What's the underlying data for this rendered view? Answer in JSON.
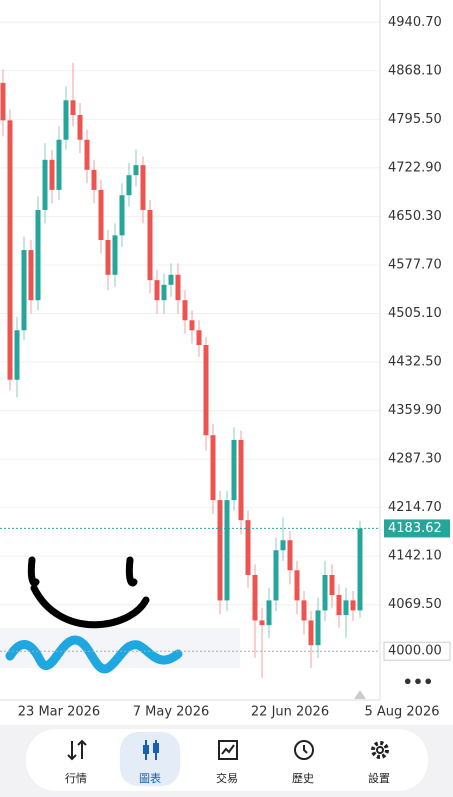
{
  "chart_data": {
    "type": "candlestick",
    "categories": [
      null,
      null,
      null,
      null,
      null,
      null,
      null,
      null,
      "23 Mar 2026",
      null,
      null,
      null,
      null,
      null,
      null,
      null,
      null,
      null,
      null,
      null,
      null,
      null,
      null,
      null,
      "7 May 2026",
      null,
      null,
      null,
      null,
      null,
      null,
      null,
      null,
      null,
      null,
      null,
      null,
      null,
      null,
      null,
      null,
      "22 Jun 2026",
      null,
      null,
      null,
      null,
      null,
      null,
      null,
      null,
      null,
      null,
      null,
      null,
      null,
      null,
      null,
      "5 Aug 2026"
    ],
    "open": [
      4850,
      4794,
      4406,
      4480,
      4600,
      4525,
      4660,
      4735,
      4690,
      4765,
      4824,
      4802,
      4765,
      4720,
      4690,
      4615,
      4563,
      4622,
      4682,
      4712,
      4727,
      4660,
      4555,
      4525,
      4548,
      4563,
      4525,
      4495,
      4480,
      4458,
      4323,
      4226,
      4076,
      4226,
      4316,
      4196,
      4114,
      4046,
      4039,
      4076,
      4151,
      4166,
      4121,
      4076,
      4046,
      4009,
      4061,
      4114,
      4084,
      4054,
      4076,
      4061,
      null,
      null,
      null,
      null,
      null,
      null
    ],
    "high": [
      4870,
      4810,
      4500,
      4620,
      4615,
      4680,
      4760,
      4750,
      4785,
      4845,
      4880,
      4820,
      4780,
      4735,
      4705,
      4630,
      4640,
      4700,
      4730,
      4750,
      4740,
      4675,
      4570,
      4565,
      4580,
      4580,
      4540,
      4510,
      4495,
      4470,
      4340,
      4240,
      4240,
      4335,
      4330,
      4210,
      4130,
      4065,
      4095,
      4170,
      4200,
      4180,
      4135,
      4090,
      4060,
      4080,
      4135,
      4130,
      4100,
      4095,
      4090,
      4195,
      null,
      null,
      null,
      null,
      null,
      null
    ],
    "low": [
      4770,
      4390,
      4380,
      4465,
      4505,
      4510,
      4640,
      4670,
      4675,
      4750,
      4785,
      4745,
      4700,
      4670,
      4595,
      4540,
      4545,
      4605,
      4665,
      4695,
      4640,
      4535,
      4505,
      4505,
      4530,
      4505,
      4475,
      4460,
      4440,
      4300,
      4205,
      4055,
      4060,
      4210,
      4175,
      4095,
      3990,
      3960,
      4020,
      4060,
      4135,
      4100,
      4055,
      4025,
      3975,
      3990,
      4045,
      4065,
      4035,
      4020,
      4045,
      4050,
      null,
      null,
      null,
      null,
      null,
      null
    ],
    "close": [
      4794,
      4406,
      4480,
      4600,
      4525,
      4660,
      4735,
      4690,
      4765,
      4824,
      4802,
      4765,
      4720,
      4690,
      4615,
      4563,
      4622,
      4682,
      4712,
      4727,
      4660,
      4555,
      4525,
      4548,
      4563,
      4525,
      4495,
      4480,
      4458,
      4323,
      4226,
      4076,
      4226,
      4316,
      4196,
      4114,
      4046,
      4039,
      4076,
      4151,
      4166,
      4121,
      4076,
      4046,
      4009,
      4061,
      4114,
      4084,
      4054,
      4076,
      4061,
      4183.62,
      null,
      null,
      null,
      null,
      null,
      null
    ],
    "up_color": "#26a69a",
    "down_color": "#ef5350",
    "ylim": [
      3927,
      4974
    ],
    "yticks": [
      {
        "value": 4940.7,
        "label": "4940.70"
      },
      {
        "value": 4868.1,
        "label": "4868.10"
      },
      {
        "value": 4795.5,
        "label": "4795.50"
      },
      {
        "value": 4722.9,
        "label": "4722.90"
      },
      {
        "value": 4650.3,
        "label": "4650.30"
      },
      {
        "value": 4577.7,
        "label": "4577.70"
      },
      {
        "value": 4505.1,
        "label": "4505.10"
      },
      {
        "value": 4432.5,
        "label": "4432.50"
      },
      {
        "value": 4359.9,
        "label": "4359.90"
      },
      {
        "value": 4287.3,
        "label": "4287.30"
      },
      {
        "value": 4214.7,
        "label": "4214.70"
      },
      {
        "value": 4142.1,
        "label": "4142.10"
      },
      {
        "value": 4069.5,
        "label": "4069.50"
      }
    ],
    "grid": true,
    "last_price": {
      "value": 4183.62,
      "label": "4183.62"
    },
    "ref_price": {
      "value": 4000,
      "label": "4000.00"
    }
  },
  "nav": {
    "tabs": [
      "行情",
      "圖表",
      "交易",
      "歷史",
      "設置"
    ],
    "active": 1
  }
}
